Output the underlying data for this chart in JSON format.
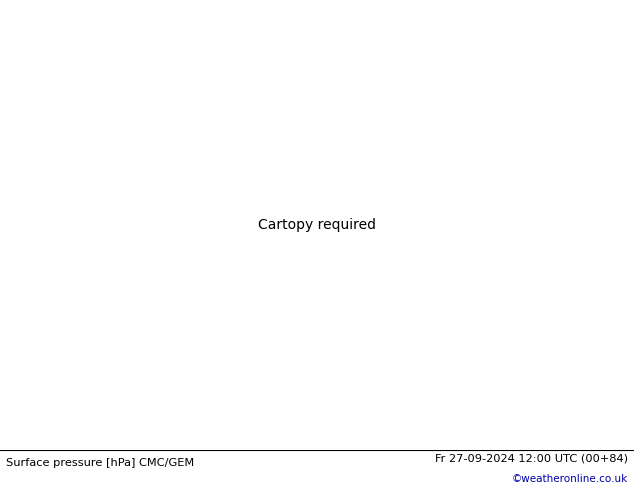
{
  "title_left": "Surface pressure [hPa] CMC/GEM",
  "title_right": "Fr 27-09-2024 12:00 UTC (00+84)",
  "watermark": "©weatheronline.co.uk",
  "land_color": "#b5d9a0",
  "ocean_color": "#e8e8e8",
  "footer_bg": "#ffffff",
  "text_color_black": "#000000",
  "text_color_blue": "#0000cc",
  "figsize": [
    6.34,
    4.9
  ],
  "dpi": 100,
  "lon_min": -110,
  "lon_max": 20,
  "lat_min": -65,
  "lat_max": 18
}
